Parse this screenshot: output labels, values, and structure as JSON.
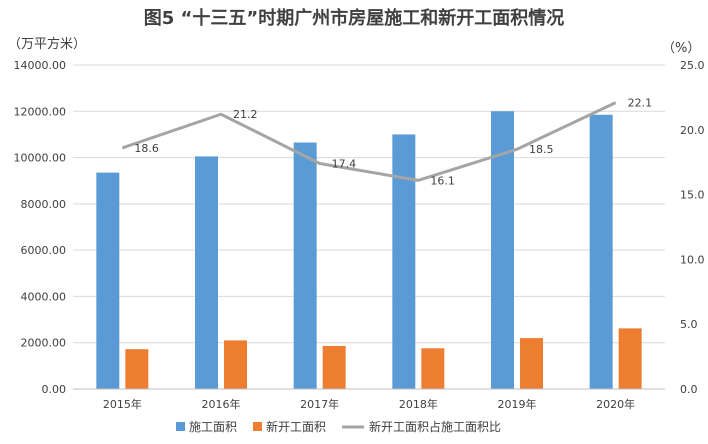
{
  "chart_data": {
    "type": "bar",
    "title": "图5 “十三五”时期广州市房屋施工和新开工面积情况",
    "left_unit": "（万平方米）",
    "right_unit": "（%）",
    "categories": [
      "2015年",
      "2016年",
      "2017年",
      "2018年",
      "2019年",
      "2020年"
    ],
    "left_ticks": [
      "0.00",
      "2000.00",
      "4000.00",
      "6000.00",
      "8000.00",
      "10000.00",
      "12000.00",
      "14000.00"
    ],
    "right_ticks": [
      "0.0",
      "5.0",
      "10.0",
      "15.0",
      "20.0",
      "25.0"
    ],
    "ylim_left": [
      0,
      14000
    ],
    "ylim_right": [
      0,
      25
    ],
    "grid": true,
    "legend_position": "bottom",
    "series": [
      {
        "name": "施工面积",
        "type": "bar",
        "axis": "left",
        "color": "#5b9bd5",
        "values": [
          9350,
          10050,
          10650,
          11000,
          12000,
          11850
        ]
      },
      {
        "name": "新开工面积",
        "type": "bar",
        "axis": "left",
        "color": "#ed7d31",
        "values": [
          1720,
          2100,
          1860,
          1760,
          2200,
          2620
        ]
      },
      {
        "name": "新开工面积占施工面积比",
        "type": "line",
        "axis": "right",
        "color": "#a5a5a5",
        "values": [
          18.6,
          21.2,
          17.4,
          16.1,
          18.5,
          22.1
        ],
        "labels": [
          "18.6",
          "21.2",
          "17.4",
          "16.1",
          "18.5",
          "22.1"
        ]
      }
    ]
  }
}
